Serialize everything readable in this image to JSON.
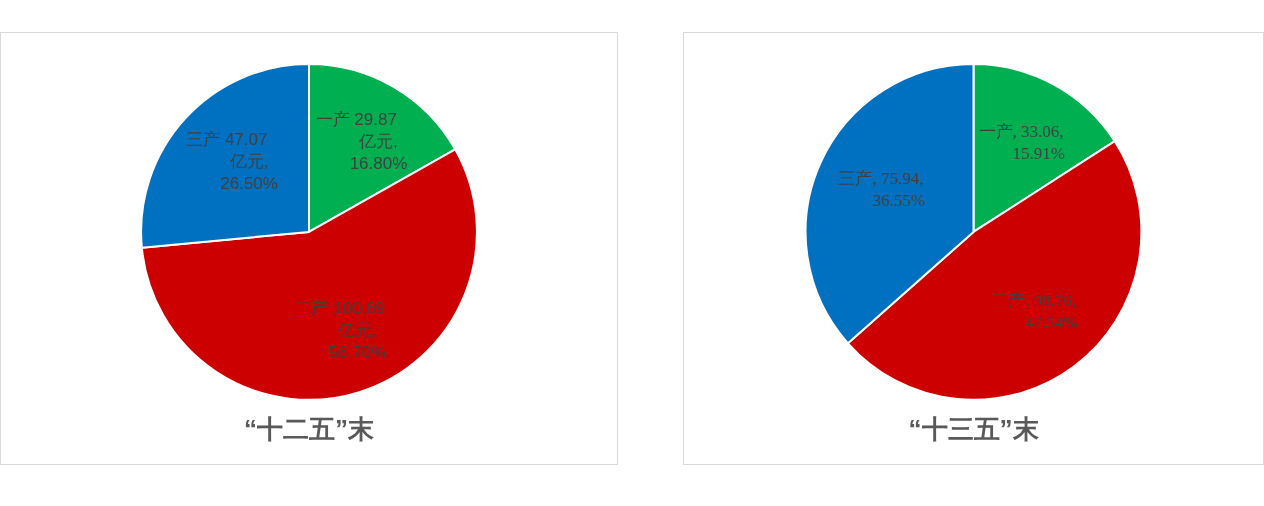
{
  "chart_data": [
    {
      "type": "pie",
      "title": "“十二五”末",
      "categories": [
        "一产",
        "二产",
        "三产"
      ],
      "values": [
        29.87,
        100.69,
        47.07
      ],
      "colors": [
        "#00b050",
        "#cc0000",
        "#0070c0"
      ],
      "value_labels": [
        "29.87 亿元, 16.80%",
        "100.69 亿元, 56.70%",
        "47.07 亿元, 26.50%"
      ]
    },
    {
      "type": "pie",
      "title": "“十三五”末",
      "categories": [
        "一产",
        "二产",
        "三产"
      ],
      "values": [
        33.06,
        98.76,
        75.94
      ],
      "colors": [
        "#00b050",
        "#cc0000",
        "#0070c0"
      ],
      "value_labels": [
        ", 33.06, 15.91%",
        ", 98.76, 47.54%",
        ", 75.94, 36.55%"
      ]
    }
  ]
}
